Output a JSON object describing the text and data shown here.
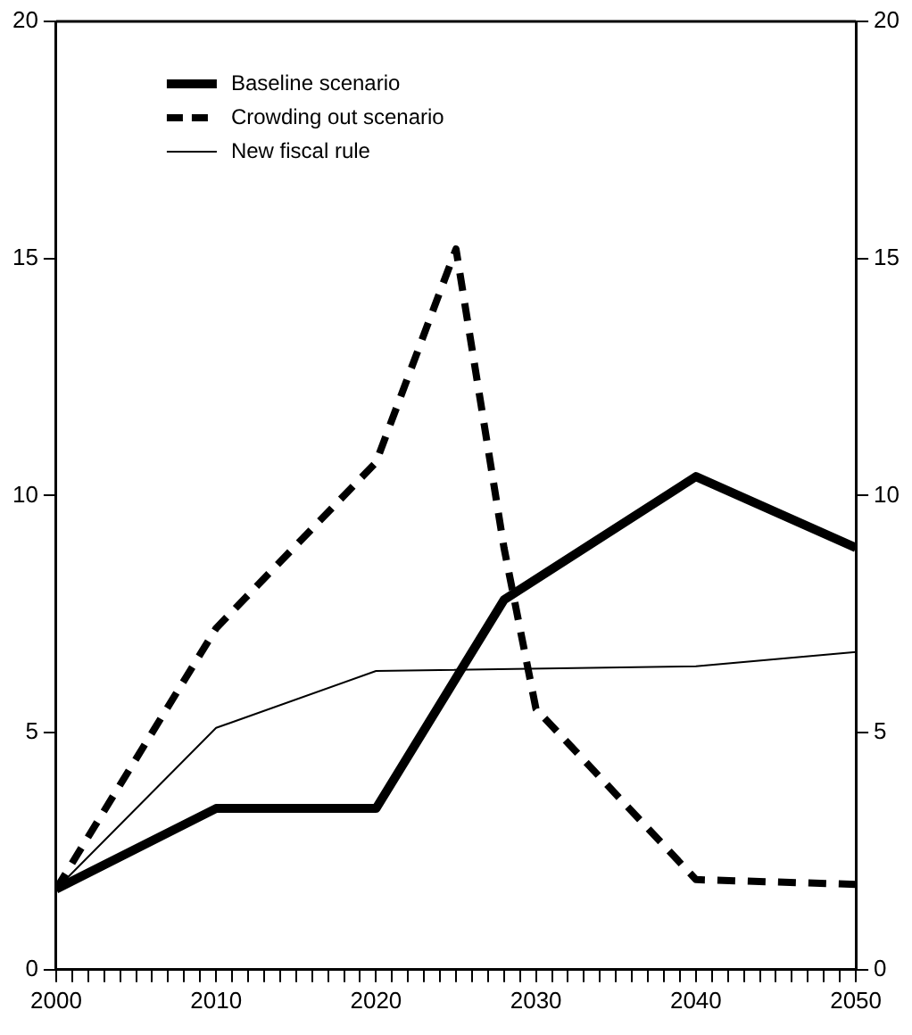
{
  "chart_data": {
    "type": "line",
    "series": [
      {
        "name": "Baseline scenario",
        "color": "#000000",
        "line_style": "solid",
        "x": [
          2000,
          2010,
          2020,
          2028,
          2040,
          2050
        ],
        "values": [
          1.7,
          3.4,
          3.4,
          7.8,
          10.4,
          8.9
        ]
      },
      {
        "name": "Crowding out scenario",
        "color": "#000000",
        "line_style": "dashed",
        "x": [
          2000,
          2010,
          2020,
          2025,
          2028,
          2030,
          2040,
          2050
        ],
        "values": [
          1.7,
          7.2,
          10.7,
          15.2,
          8.9,
          5.5,
          1.9,
          1.8
        ]
      },
      {
        "name": "New fiscal rule",
        "color": "#000000",
        "line_style": "solid",
        "x": [
          2000,
          2010,
          2020,
          2040,
          2050
        ],
        "values": [
          1.7,
          5.1,
          6.3,
          6.4,
          6.7
        ]
      }
    ],
    "xlim": [
      2000,
      2050
    ],
    "xticks": [
      2000,
      {
        "value": 2001,
        "label": null
      },
      {
        "value": 2002,
        "label": null
      },
      {
        "value": 2003,
        "label": null
      },
      {
        "value": 2004,
        "label": null
      },
      {
        "value": 2005,
        "label": null
      },
      {
        "value": 2006,
        "label": null
      },
      {
        "value": 2007,
        "label": null
      },
      {
        "value": 2008,
        "label": null
      },
      {
        "value": 2009,
        "label": null
      },
      2010,
      {
        "value": 2011,
        "label": null
      },
      {
        "value": 2012,
        "label": null
      },
      {
        "value": 2013,
        "label": null
      },
      {
        "value": 2014,
        "label": null
      },
      {
        "value": 2015,
        "label": null
      },
      {
        "value": 2016,
        "label": null
      },
      {
        "value": 2017,
        "label": null
      },
      {
        "value": 2018,
        "label": null
      },
      {
        "value": 2019,
        "label": null
      },
      2020,
      {
        "value": 2021,
        "label": null
      },
      {
        "value": 2022,
        "label": null
      },
      {
        "value": 2023,
        "label": null
      },
      {
        "value": 2024,
        "label": null
      },
      {
        "value": 2025,
        "label": null
      },
      {
        "value": 2026,
        "label": null
      },
      {
        "value": 2027,
        "label": null
      },
      {
        "value": 2028,
        "label": null
      },
      {
        "value": 2029,
        "label": null
      },
      2030,
      {
        "value": 2031,
        "label": null
      },
      {
        "value": 2032,
        "label": null
      },
      {
        "value": 2033,
        "label": null
      },
      {
        "value": 2034,
        "label": null
      },
      {
        "value": 2035,
        "label": null
      },
      {
        "value": 2036,
        "label": null
      },
      {
        "value": 2037,
        "label": null
      },
      {
        "value": 2038,
        "label": null
      },
      {
        "value": 2039,
        "label": null
      },
      2040,
      {
        "value": 2041,
        "label": null
      },
      {
        "value": 2042,
        "label": null
      },
      {
        "value": 2043,
        "label": null
      },
      {
        "value": 2044,
        "label": null
      },
      {
        "value": 2045,
        "label": null
      },
      {
        "value": 2046,
        "label": null
      },
      {
        "value": 2047,
        "label": null
      },
      {
        "value": 2048,
        "label": null
      },
      {
        "value": 2049,
        "label": null
      },
      2050
    ],
    "ylim": [
      0,
      20
    ],
    "yticks": [
      0,
      5,
      10,
      15,
      20
    ],
    "y2lim": [
      0,
      20
    ],
    "y2ticks": [
      0,
      5,
      10,
      15,
      20
    ],
    "grid": false,
    "legend": "top left",
    "marker": "none"
  }
}
